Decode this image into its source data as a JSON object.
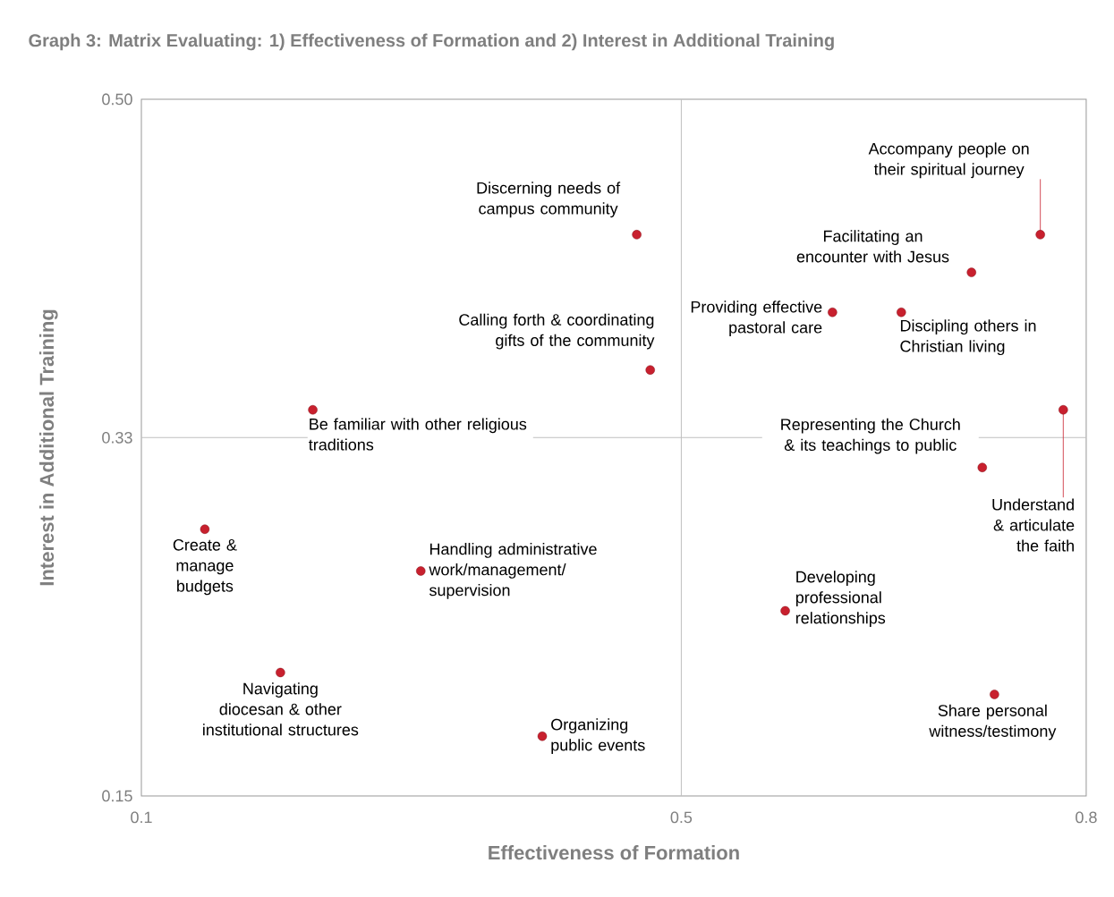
{
  "chart_data": {
    "type": "scatter",
    "title": "Graph 3: Matrix Evaluating: 1) Effectiveness of Formation and 2) Interest in Additional Training",
    "xlabel": "Effectiveness of Formation",
    "ylabel": "Interest in Additional Training",
    "x": [
      0.467,
      0.477,
      0.227,
      0.147,
      0.307,
      0.203,
      0.397,
      0.612,
      0.663,
      0.715,
      0.766,
      0.783,
      0.723,
      0.577,
      0.732
    ],
    "values": [
      0.432,
      0.364,
      0.344,
      0.284,
      0.263,
      0.212,
      0.18,
      0.393,
      0.393,
      0.413,
      0.432,
      0.344,
      0.315,
      0.243,
      0.201
    ],
    "color": "#c8202e",
    "marker": "circle",
    "xlim": [
      0.1,
      0.8
    ],
    "xticks": [
      0.1,
      0.5,
      0.8
    ],
    "ylim": [
      0.15,
      0.5
    ],
    "yticks": [
      0.15,
      0.33,
      {
        "value": 0.5,
        "label": "0.50"
      }
    ],
    "ref_lines": [
      {
        "axis": "x",
        "value": 0.5,
        "color": "#bfbfbf"
      },
      {
        "axis": "y",
        "value": 0.33,
        "color": "#bfbfbf"
      }
    ],
    "annotations": [
      {
        "text": "Discerning needs of campus community",
        "x": 0.467,
        "y": 0.432
      },
      {
        "text": "Calling forth & coordinating gifts of the community",
        "x": 0.477,
        "y": 0.364
      },
      {
        "text": "Be familiar with other religious traditions",
        "x": 0.227,
        "y": 0.344
      },
      {
        "text": "Create & manage budgets",
        "x": 0.147,
        "y": 0.284
      },
      {
        "text": "Handling administrative work/management/ supervision",
        "x": 0.307,
        "y": 0.263
      },
      {
        "text": "Navigating diocesan & other institutional structures",
        "x": 0.203,
        "y": 0.212
      },
      {
        "text": "Organizing public events",
        "x": 0.397,
        "y": 0.18
      },
      {
        "text": "Providing effective pastoral care",
        "x": 0.612,
        "y": 0.393
      },
      {
        "text": "Discipling others in Christian living",
        "x": 0.663,
        "y": 0.393
      },
      {
        "text": "Facilitating an encounter with Jesus",
        "x": 0.715,
        "y": 0.413
      },
      {
        "text": "Accompany people on their spiritual journey",
        "x": 0.766,
        "y": 0.432
      },
      {
        "text": "Understand & articulate the faith",
        "x": 0.783,
        "y": 0.344
      },
      {
        "text": "Representing the Church & its teachings to public",
        "x": 0.723,
        "y": 0.315
      },
      {
        "text": "Developing professional relationships",
        "x": 0.577,
        "y": 0.243
      },
      {
        "text": "Share personal witness/testimony",
        "x": 0.732,
        "y": 0.201
      }
    ]
  }
}
